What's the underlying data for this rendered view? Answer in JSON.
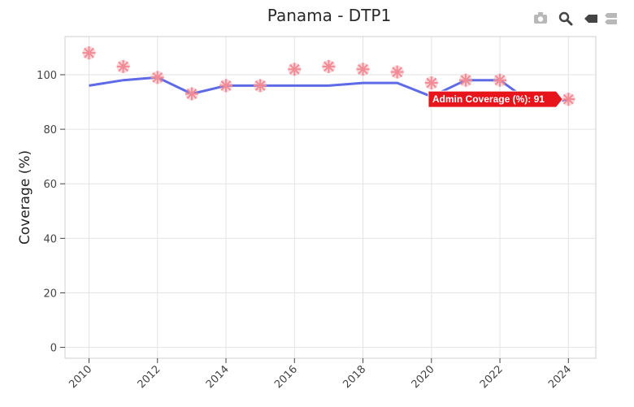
{
  "chart_data": {
    "type": "line",
    "title": "Panama - DTP1",
    "xlabel": "",
    "ylabel": "Coverage (%)",
    "xlim": [
      2009.3,
      2024.8
    ],
    "ylim": [
      -4,
      114
    ],
    "x_ticks": [
      2010,
      2012,
      2014,
      2016,
      2018,
      2020,
      2022,
      2024
    ],
    "y_ticks": [
      0,
      20,
      40,
      60,
      80,
      100
    ],
    "grid": true,
    "legend": "none",
    "series": [
      {
        "kind": "line",
        "color": "#5e6ae6",
        "points": [
          {
            "x": 2010,
            "y": 96
          },
          {
            "x": 2011,
            "y": 98
          },
          {
            "x": 2012,
            "y": 99
          },
          {
            "x": 2013,
            "y": 93
          },
          {
            "x": 2014,
            "y": 96
          },
          {
            "x": 2015,
            "y": 96
          },
          {
            "x": 2016,
            "y": 96
          },
          {
            "x": 2017,
            "y": 96
          },
          {
            "x": 2018,
            "y": 97
          },
          {
            "x": 2019,
            "y": 97
          },
          {
            "x": 2020,
            "y": 92
          },
          {
            "x": 2021,
            "y": 98
          },
          {
            "x": 2022,
            "y": 98
          },
          {
            "x": 2023,
            "y": 89
          },
          {
            "x": 2024,
            "y": 91
          }
        ]
      },
      {
        "kind": "markers",
        "name": "Admin Coverage (%)",
        "color": "#f28b95",
        "points": [
          {
            "x": 2010,
            "y": 108
          },
          {
            "x": 2011,
            "y": 103
          },
          {
            "x": 2012,
            "y": 99
          },
          {
            "x": 2013,
            "y": 93
          },
          {
            "x": 2014,
            "y": 96
          },
          {
            "x": 2015,
            "y": 96
          },
          {
            "x": 2016,
            "y": 102
          },
          {
            "x": 2017,
            "y": 103
          },
          {
            "x": 2018,
            "y": 102
          },
          {
            "x": 2019,
            "y": 101
          },
          {
            "x": 2020,
            "y": 97
          },
          {
            "x": 2021,
            "y": 98
          },
          {
            "x": 2022,
            "y": 98
          },
          {
            "x": 2024,
            "y": 91
          }
        ]
      }
    ],
    "hover": {
      "label": "Admin Coverage (%)",
      "value": "91",
      "x": 2024,
      "y": 91,
      "color": "#e8141b"
    }
  },
  "modebar": [
    {
      "name": "camera-icon",
      "active": false
    },
    {
      "name": "zoom-icon",
      "active": true
    },
    {
      "name": "hover-closest-icon",
      "active": true
    },
    {
      "name": "hover-compare-icon",
      "active": false
    }
  ]
}
